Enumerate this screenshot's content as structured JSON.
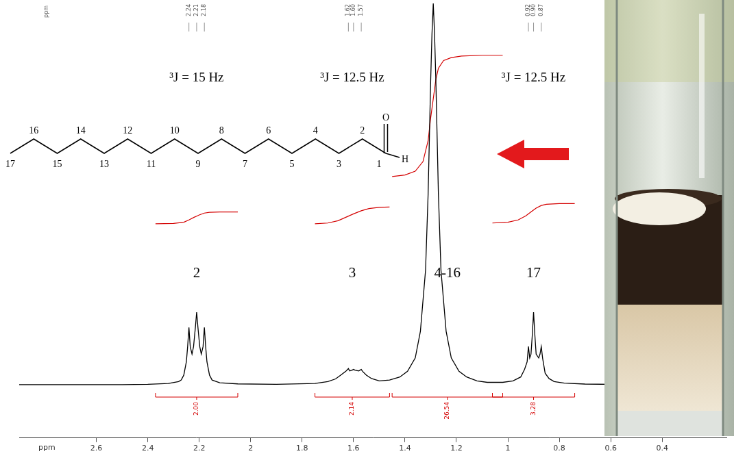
{
  "chart_data": {
    "type": "line",
    "color": "#000000",
    "xlabel": "ppm",
    "corner_label": "ppm",
    "grid": false,
    "tick_labels": "x",
    "xlim": [
      2.9,
      0.15
    ],
    "xticks": [
      2.6,
      2.4,
      2.2,
      2,
      1.8,
      1.6,
      1.4,
      1.2,
      1,
      0.8,
      0.6,
      0.4
    ],
    "ylim": [
      -14,
      100
    ],
    "x": [
      2.9,
      2.5,
      2.4,
      2.32,
      2.28,
      2.27,
      2.26,
      2.25,
      2.245,
      2.24,
      2.235,
      2.228,
      2.222,
      2.215,
      2.21,
      2.205,
      2.198,
      2.192,
      2.185,
      2.18,
      2.175,
      2.17,
      2.16,
      2.15,
      2.12,
      2.05,
      1.9,
      1.75,
      1.7,
      1.67,
      1.65,
      1.63,
      1.62,
      1.615,
      1.605,
      1.6,
      1.595,
      1.58,
      1.57,
      1.565,
      1.55,
      1.53,
      1.5,
      1.46,
      1.42,
      1.39,
      1.36,
      1.34,
      1.32,
      1.31,
      1.3,
      1.295,
      1.29,
      1.285,
      1.28,
      1.27,
      1.26,
      1.24,
      1.22,
      1.19,
      1.16,
      1.12,
      1.08,
      1.02,
      0.98,
      0.95,
      0.935,
      0.925,
      0.92,
      0.915,
      0.91,
      0.905,
      0.9,
      0.895,
      0.89,
      0.88,
      0.875,
      0.87,
      0.865,
      0.855,
      0.84,
      0.82,
      0.78,
      0.7,
      0.5,
      0.15
    ],
    "values": [
      0,
      0,
      0.1,
      0.3,
      0.8,
      1.2,
      2.5,
      6,
      10,
      15,
      10,
      8,
      10,
      15,
      19,
      15,
      10,
      8,
      10,
      15,
      10,
      6,
      2.5,
      1.2,
      0.5,
      0.2,
      0.1,
      0.3,
      0.8,
      1.5,
      2.5,
      3.5,
      4.2,
      3.6,
      3.8,
      4,
      3.8,
      3.6,
      4,
      3.5,
      2.5,
      1.6,
      1,
      1.2,
      2,
      3.5,
      7,
      14,
      30,
      50,
      80,
      92,
      100,
      92,
      80,
      50,
      30,
      14,
      7,
      3.5,
      2,
      1,
      0.6,
      0.6,
      1,
      2,
      4,
      6,
      10,
      7,
      8,
      13,
      19,
      13,
      8,
      7,
      8,
      10,
      7,
      3,
      1.6,
      0.8,
      0.4,
      0.15,
      0,
      0
    ],
    "groups": [
      {
        "label": "2",
        "coupling": "³J = 15 Hz",
        "peak_labels": [
          2.24,
          2.21,
          2.18
        ],
        "integral": {
          "value": 2,
          "label": "2.00",
          "color": "#d40000",
          "x": [
            2.37,
            2.3,
            2.26,
            2.24,
            2.22,
            2.21,
            2.2,
            2.18,
            2.16,
            2.12,
            2.05
          ],
          "values": [
            42.2,
            42.3,
            42.6,
            43.2,
            43.9,
            44.2,
            44.5,
            45,
            45.2,
            45.3,
            45.3
          ]
        }
      },
      {
        "label": "3",
        "coupling": "³J = 12.5 Hz",
        "peak_labels": [
          1.62,
          {
            "value": 1.6,
            "label": "1.60"
          },
          1.57
        ],
        "integral": {
          "value": 2.14,
          "color": "#d40000",
          "x": [
            1.75,
            1.7,
            1.66,
            1.63,
            1.6,
            1.57,
            1.54,
            1.5,
            1.46
          ],
          "values": [
            42.2,
            42.4,
            43,
            43.9,
            44.8,
            45.6,
            46.2,
            46.5,
            46.6
          ]
        }
      },
      {
        "label": "4-16",
        "integral": {
          "value": 26.54,
          "color": "#d40000",
          "x": [
            1.45,
            1.4,
            1.36,
            1.33,
            1.31,
            1.3,
            1.29,
            1.28,
            1.27,
            1.25,
            1.22,
            1.18,
            1.1,
            1.02
          ],
          "values": [
            54.6,
            55,
            56,
            58.5,
            64,
            70,
            75,
            80,
            83,
            85,
            85.8,
            86.2,
            86.4,
            86.4
          ]
        }
      },
      {
        "label": "17",
        "coupling": "³J = 12.5 Hz",
        "peak_labels": [
          0.92,
          {
            "value": 0.9,
            "label": "0.90"
          },
          0.87
        ],
        "integral": {
          "value": 3.28,
          "color": "#d40000",
          "x": [
            1.06,
            1,
            0.96,
            0.93,
            0.91,
            0.9,
            0.89,
            0.87,
            0.85,
            0.8,
            0.74
          ],
          "values": [
            42.4,
            42.6,
            43.2,
            44.3,
            45.3,
            45.8,
            46.3,
            47,
            47.3,
            47.5,
            47.5
          ]
        }
      }
    ]
  },
  "molecule": {
    "atom_numbers": [
      1,
      2,
      3,
      4,
      5,
      6,
      7,
      8,
      9,
      10,
      11,
      12,
      13,
      14,
      15,
      16,
      17
    ],
    "oxygen": "O",
    "hydrogen": "H"
  }
}
